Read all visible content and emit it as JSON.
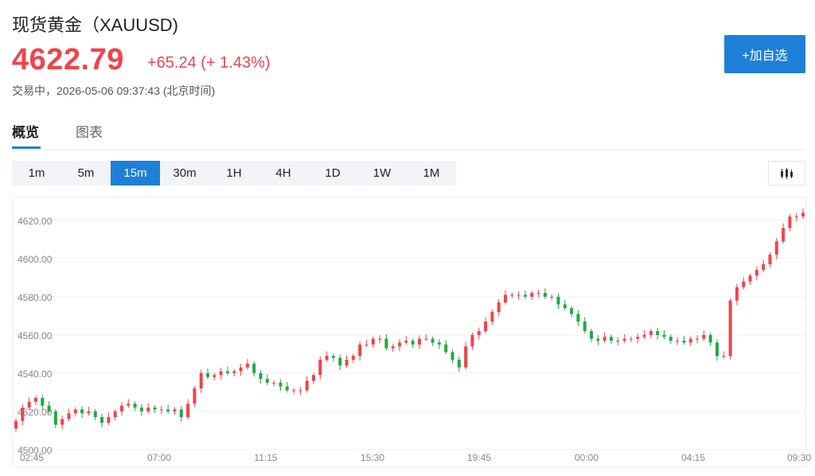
{
  "header": {
    "title": "现货黄金（XAUUSD)",
    "price": "4622.79",
    "change": "+65.24 (+ 1.43%)",
    "status": "交易中，2026-05-06 09:37:43 (北京时间)",
    "add_button": "+加自选"
  },
  "tabs": [
    "概览",
    "图表"
  ],
  "periods": [
    "1m",
    "5m",
    "15m",
    "30m",
    "1H",
    "4H",
    "1D",
    "1W",
    "1M"
  ],
  "active_period": "15m",
  "colors": {
    "up": "#f0444d",
    "down": "#22a844",
    "accent": "#1e7fd9"
  },
  "icons": {
    "chart_type": "candlestick-icon"
  },
  "chart_data": {
    "type": "candlestick",
    "y_ticks": [
      "4500.00",
      "4520.00",
      "4540.00",
      "4560.00",
      "4580.00",
      "4600.00",
      "4620.00"
    ],
    "y_tick_values": [
      4500,
      4520,
      4540,
      4560,
      4580,
      4600,
      4620
    ],
    "x_ticks": [
      "02:45",
      "07:00",
      "11:15",
      "15:30",
      "19:45",
      "00:00",
      "04:15",
      "09:30"
    ],
    "ylim": [
      4497,
      4632
    ],
    "close": [
      4515,
      4522,
      4525,
      4527,
      4523,
      4520,
      4513,
      4516,
      4519,
      4521,
      4519,
      4520,
      4517,
      4514,
      4517,
      4520,
      4523,
      4524,
      4522,
      4520,
      4522,
      4521,
      4521,
      4520,
      4521,
      4517,
      4524,
      4532,
      4540,
      4538,
      4539,
      4541,
      4540,
      4541,
      4543,
      4545,
      4540,
      4537,
      4535,
      4535,
      4533,
      4531,
      4531,
      4531,
      4536,
      4539,
      4547,
      4549,
      4548,
      4544,
      4547,
      4549,
      4555,
      4555,
      4558,
      4558,
      4553,
      4554,
      4556,
      4557,
      4555,
      4558,
      4558,
      4556,
      4555,
      4551,
      4547,
      4543,
      4554,
      4560,
      4562,
      4567,
      4572,
      4577,
      4581,
      4581,
      4581,
      4580,
      4582,
      4582,
      4580,
      4580,
      4576,
      4574,
      4571,
      4567,
      4562,
      4558,
      4557,
      4559,
      4557,
      4557,
      4558,
      4558,
      4559,
      4560,
      4562,
      4560,
      4559,
      4557,
      4557,
      4556,
      4558,
      4558,
      4560,
      4556,
      4549,
      4549,
      4578,
      4585,
      4588,
      4591,
      4594,
      4597,
      4602,
      4609,
      4616,
      4622,
      4622,
      4624
    ],
    "grid": true,
    "legend": "none"
  }
}
